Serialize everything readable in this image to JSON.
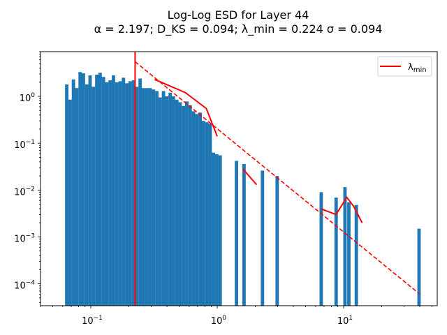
{
  "chart_data": {
    "type": "bar",
    "title": "Log-Log ESD for Layer 44",
    "subtitle": "α = 2.197; D_KS = 0.094; λ_min = 0.224 σ = 0.094",
    "x_scale": "log",
    "y_scale": "log",
    "xlim": [
      0.04,
      55
    ],
    "ylim": [
      3.4e-05,
      9
    ],
    "x_ticks": [
      {
        "value": 0.1,
        "base": "10",
        "exp": "−1"
      },
      {
        "value": 1,
        "base": "10",
        "exp": "0"
      },
      {
        "value": 10,
        "base": "10",
        "exp": "1"
      }
    ],
    "y_ticks": [
      {
        "value": 0.0001,
        "base": "10",
        "exp": "−4"
      },
      {
        "value": 0.001,
        "base": "10",
        "exp": "−3"
      },
      {
        "value": 0.01,
        "base": "10",
        "exp": "−2"
      },
      {
        "value": 0.1,
        "base": "10",
        "exp": "−1"
      },
      {
        "value": 1,
        "base": "10",
        "exp": "0"
      }
    ],
    "histogram": {
      "color": "#1f77b4",
      "bin_width_log10": 0.0267,
      "bins": [
        [
          0.0645,
          1.8
        ],
        [
          0.0686,
          0.85
        ],
        [
          0.0729,
          2.3
        ],
        [
          0.0774,
          1.5
        ],
        [
          0.0823,
          3.3
        ],
        [
          0.0874,
          3.1
        ],
        [
          0.0929,
          1.8
        ],
        [
          0.0987,
          2.8
        ],
        [
          0.1049,
          1.6
        ],
        [
          0.1115,
          2.9
        ],
        [
          0.1185,
          3.2
        ],
        [
          0.1259,
          2.6
        ],
        [
          0.1338,
          2.0
        ],
        [
          0.1422,
          2.2
        ],
        [
          0.1511,
          2.8
        ],
        [
          0.1605,
          2.0
        ],
        [
          0.1706,
          2.1
        ],
        [
          0.1813,
          2.5
        ],
        [
          0.1926,
          1.9
        ],
        [
          0.2047,
          2.1
        ],
        [
          0.2175,
          2.2
        ],
        [
          0.2311,
          1.6
        ],
        [
          0.2456,
          2.4
        ],
        [
          0.261,
          1.5
        ],
        [
          0.2773,
          1.5
        ],
        [
          0.2947,
          1.5
        ],
        [
          0.3132,
          1.4
        ],
        [
          0.3328,
          1.3
        ],
        [
          0.3536,
          0.95
        ],
        [
          0.3758,
          1.3
        ],
        [
          0.3993,
          1.0
        ],
        [
          0.4243,
          1.2
        ],
        [
          0.4509,
          1.0
        ],
        [
          0.4791,
          0.85
        ],
        [
          0.5091,
          0.75
        ],
        [
          0.541,
          0.62
        ],
        [
          0.5749,
          0.78
        ],
        [
          0.6109,
          0.65
        ],
        [
          0.6492,
          0.48
        ],
        [
          0.6899,
          0.42
        ],
        [
          0.7331,
          0.45
        ],
        [
          0.779,
          0.3
        ],
        [
          0.8278,
          0.28
        ],
        [
          0.8797,
          0.26
        ],
        [
          0.9348,
          0.063
        ],
        [
          0.9933,
          0.058
        ],
        [
          1.0555,
          0.055
        ],
        [
          1.42,
          0.042
        ],
        [
          1.63,
          0.036
        ],
        [
          2.28,
          0.026
        ],
        [
          2.98,
          0.02
        ],
        [
          6.65,
          0.009
        ],
        [
          8.72,
          0.0069
        ],
        [
          10.25,
          0.0115
        ],
        [
          11.0,
          0.0055
        ],
        [
          12.6,
          0.0048
        ],
        [
          39.5,
          0.0015
        ]
      ]
    },
    "lambda_min": 0.224,
    "power_law_fit": {
      "color": "#ff0000",
      "style": "dashed",
      "x": [
        0.224,
        40
      ],
      "y": [
        5.5,
        6e-05
      ]
    },
    "density_segments": {
      "color": "#ff0000",
      "segments": [
        [
          [
            0.32,
            2.3
          ],
          [
            0.56,
            1.2
          ],
          [
            0.82,
            0.55
          ],
          [
            1.0,
            0.14
          ]
        ],
        [
          [
            1.6,
            0.028
          ],
          [
            2.05,
            0.013
          ]
        ],
        [
          [
            6.6,
            0.004
          ],
          [
            8.7,
            0.003
          ],
          [
            10.6,
            0.007
          ],
          [
            12.0,
            0.0045
          ],
          [
            14.0,
            0.002
          ]
        ]
      ]
    },
    "legend": {
      "entries": [
        {
          "label": "λ",
          "sub": "min",
          "color": "#ff0000"
        }
      ],
      "placement": "top-right"
    }
  }
}
